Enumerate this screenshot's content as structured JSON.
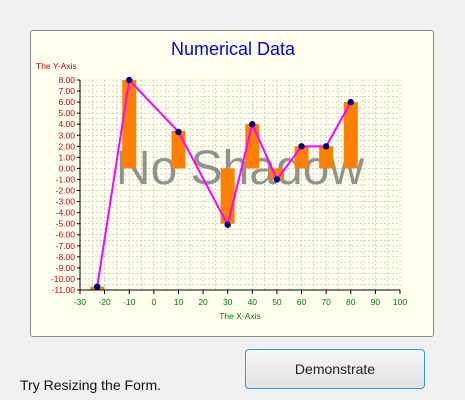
{
  "chart_data": {
    "type": "bar",
    "title": "Numerical Data",
    "watermark": "No Shadow",
    "xlabel": "The X-Axis",
    "ylabel": "The Y-Axis",
    "xlim": [
      -30,
      100
    ],
    "ylim": [
      -11,
      8
    ],
    "x_ticks": [
      "-30",
      "-20",
      "-10",
      "0",
      "10",
      "20",
      "30",
      "40",
      "50",
      "60",
      "70",
      "80",
      "90",
      "100"
    ],
    "y_ticks": [
      "8.00",
      "7.00",
      "6.00",
      "5.00",
      "4.00",
      "3.00",
      "2.00",
      "1.00",
      "0.00",
      "-1.00",
      "-2.00",
      "-3.00",
      "-4.00",
      "-5.00",
      "-6.00",
      "-7.00",
      "-8.00",
      "-9.00",
      "-10.00",
      "-11.00"
    ],
    "grid": true,
    "series": [
      {
        "type": "bar",
        "x": [
          -23,
          -10,
          10,
          30,
          40,
          50,
          60,
          70,
          80
        ],
        "y": [
          -10.7,
          8.0,
          3.4,
          -5.0,
          4.0,
          -1.0,
          2.0,
          2.0,
          6.0
        ]
      },
      {
        "type": "line",
        "x": [
          -23,
          -10,
          10,
          30,
          40,
          50,
          60,
          70,
          80
        ],
        "y": [
          -10.7,
          8.0,
          3.3,
          -5.1,
          4.0,
          -1.0,
          2.0,
          2.0,
          6.0
        ]
      }
    ],
    "colors": {
      "bar": "#ff8000",
      "line": "#ff00ff",
      "marker": "#000080",
      "title": "#0000ff",
      "y_axis": "#cc0000",
      "x_axis": "#008000",
      "watermark": "#7f7f7f"
    }
  },
  "controls": {
    "button_label": "Demonstrate",
    "hint": "Try Resizing the Form."
  }
}
